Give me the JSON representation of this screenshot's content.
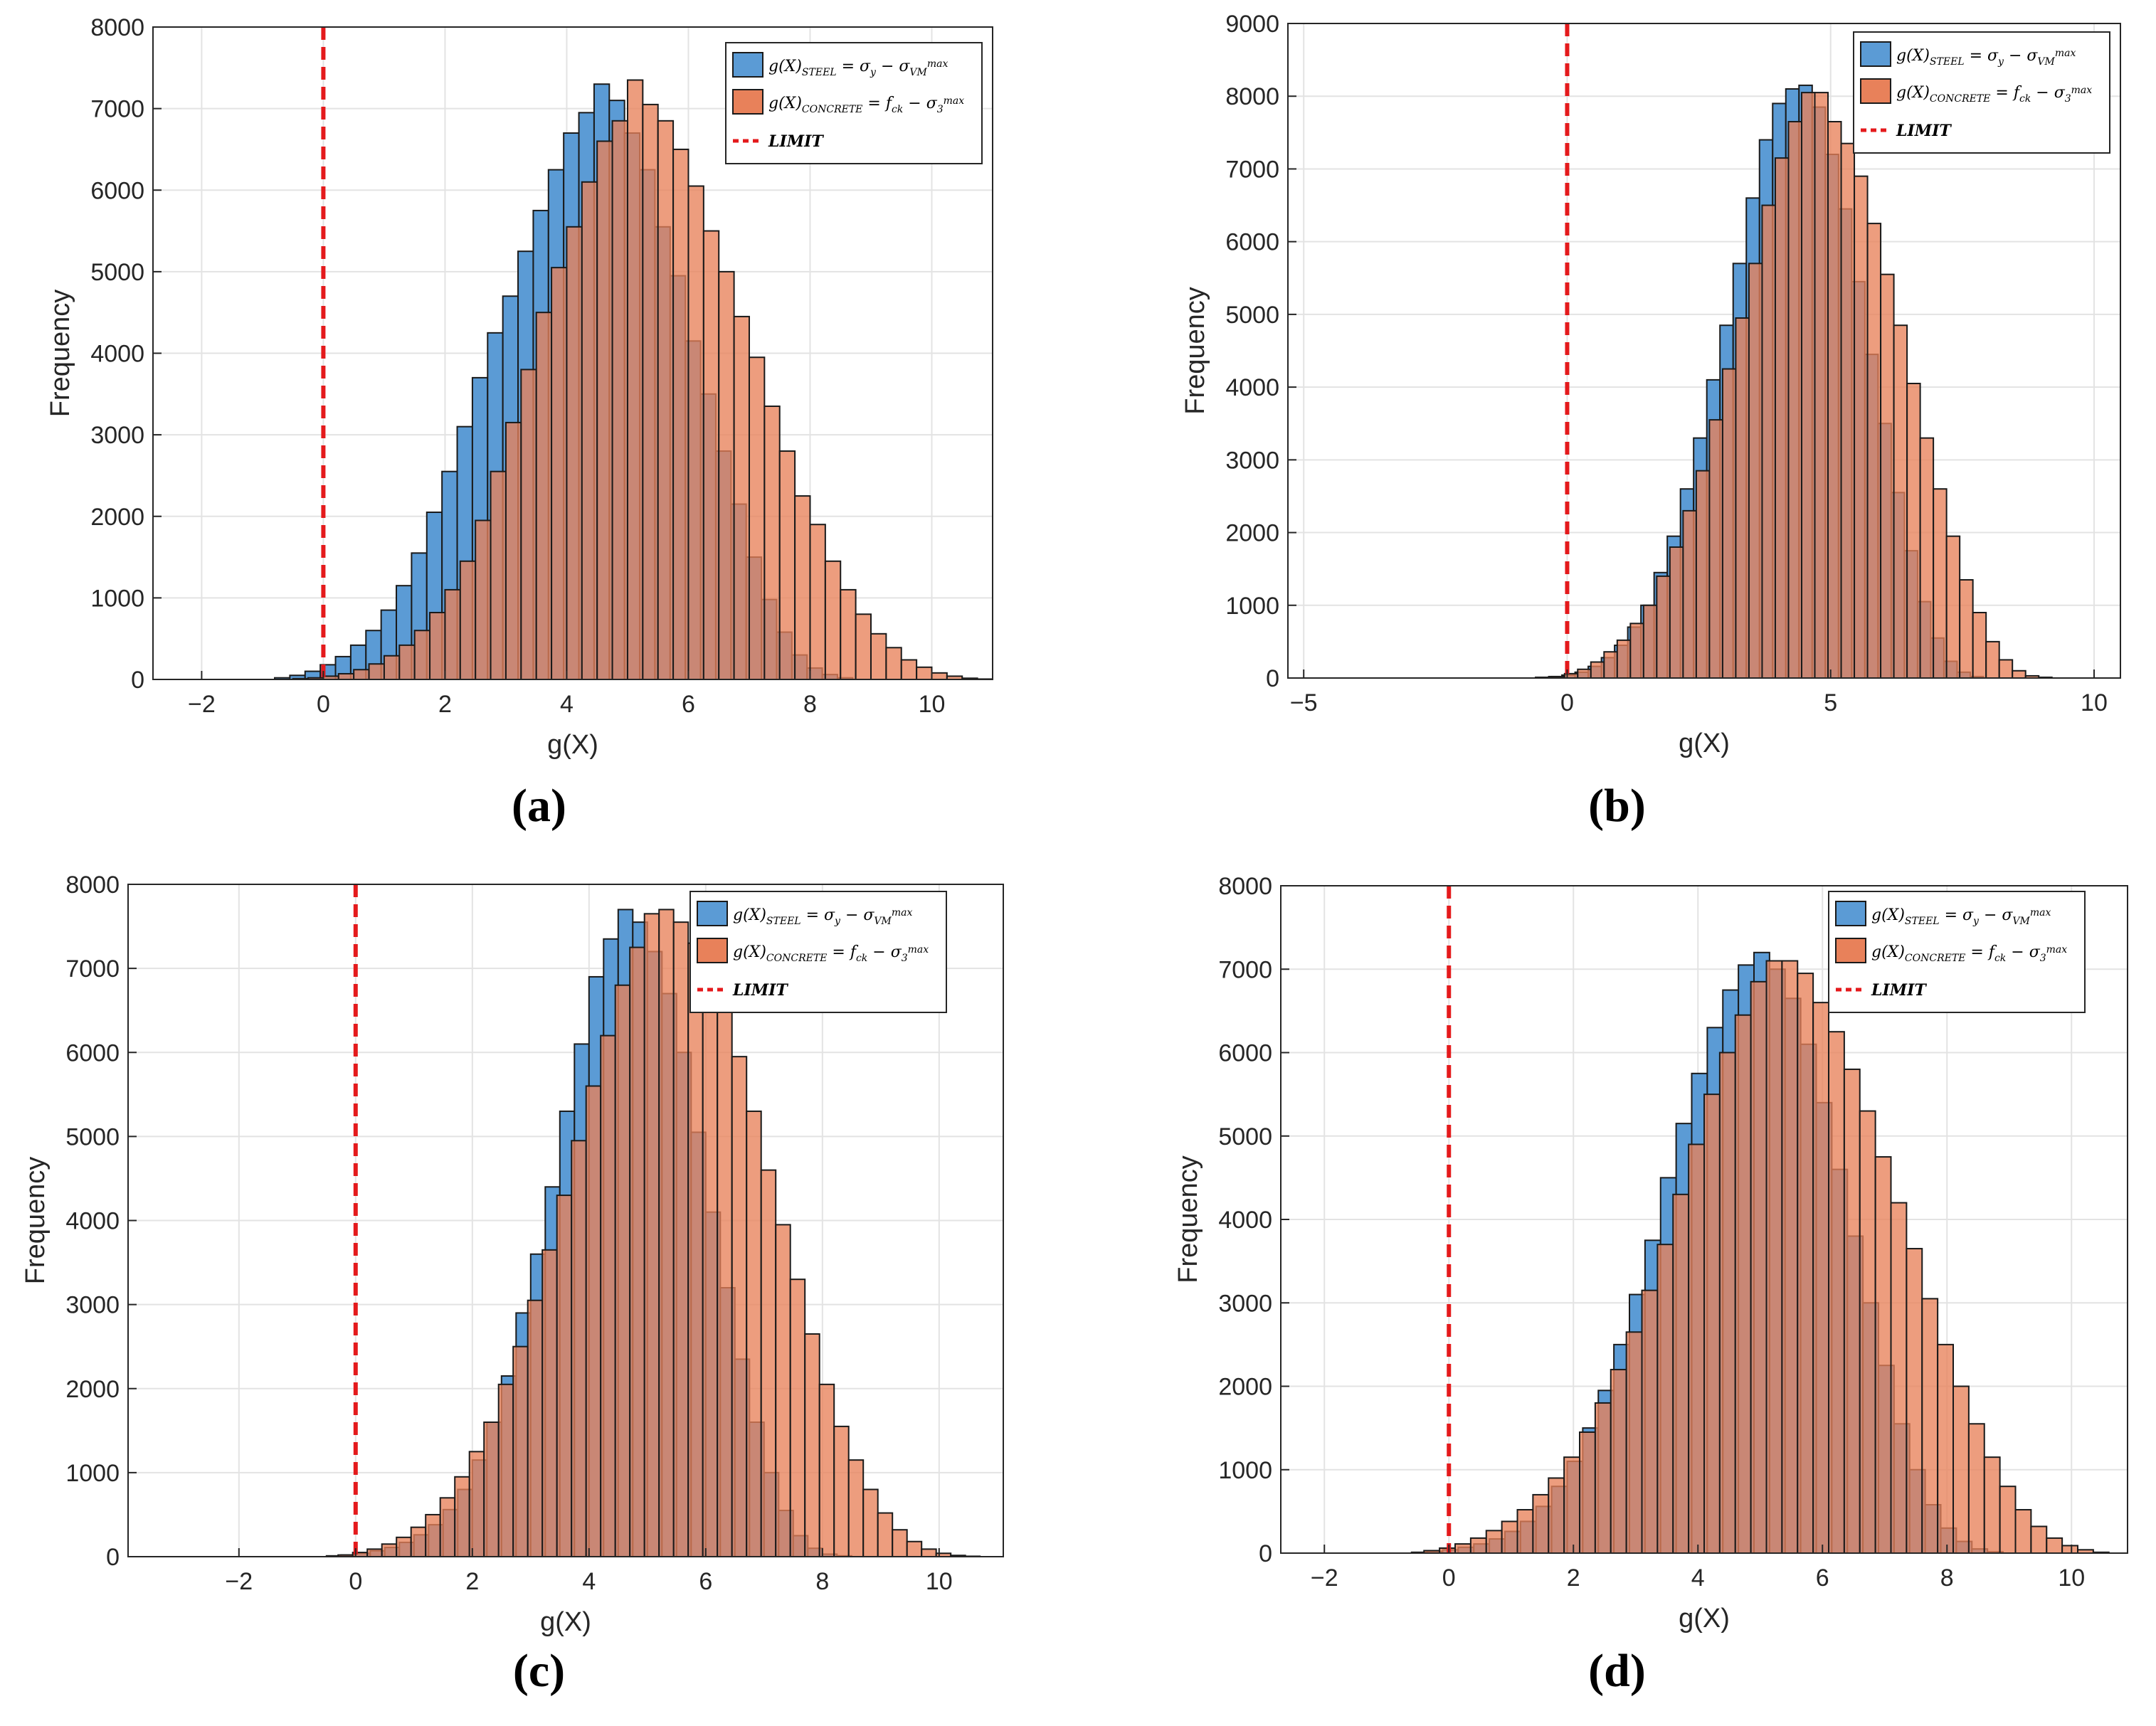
{
  "figure": {
    "legend_entries": {
      "steel": "g(X)STEEL = σy − σVM max",
      "concrete": "g(X)CONCRETE = fck − σ3 max",
      "limit": "LIMIT"
    }
  },
  "colors": {
    "steel": "#5B9BD5",
    "concrete": "#E8815A",
    "overlap": "#9B5E4A",
    "limit": "#E41A1C",
    "edge": "#1A1A1A",
    "grid": "#E3E3E3"
  },
  "chart_data": [
    {
      "panel": "(a)",
      "type": "bar",
      "xlabel": "g(X)",
      "ylabel": "Frequency",
      "xlim": [
        -2.8,
        11
      ],
      "ylim": [
        0,
        8000
      ],
      "xticks": [
        -2,
        0,
        2,
        4,
        6,
        8,
        10
      ],
      "yticks": [
        0,
        1000,
        2000,
        3000,
        4000,
        5000,
        6000,
        7000,
        8000
      ],
      "limit_x": 0,
      "series": [
        {
          "name": "g(X)STEEL",
          "start": -0.8,
          "width": 0.25,
          "values": [
            20,
            50,
            100,
            180,
            280,
            420,
            600,
            850,
            1150,
            1550,
            2050,
            2550,
            3100,
            3700,
            4250,
            4700,
            5250,
            5750,
            6250,
            6700,
            6950,
            7300,
            7100,
            6700,
            6250,
            5550,
            4950,
            4150,
            3500,
            2800,
            2150,
            1500,
            980,
            580,
            300,
            140,
            60,
            20
          ]
        },
        {
          "name": "g(X)CONCRETE",
          "start": -0.5,
          "width": 0.25,
          "values": [
            10,
            20,
            40,
            70,
            120,
            190,
            290,
            420,
            600,
            820,
            1100,
            1450,
            1950,
            2550,
            3150,
            3800,
            4500,
            5050,
            5550,
            6100,
            6600,
            6850,
            7350,
            7050,
            6850,
            6500,
            6050,
            5500,
            5000,
            4450,
            3950,
            3350,
            2800,
            2250,
            1900,
            1450,
            1100,
            800,
            560,
            390,
            240,
            150,
            80,
            40,
            15,
            5
          ]
        }
      ]
    },
    {
      "panel": "(b)",
      "type": "bar",
      "xlabel": "g(X)",
      "ylabel": "Frequency",
      "xlim": [
        -5.3,
        10.5
      ],
      "ylim": [
        0,
        9000
      ],
      "xticks": [
        -5,
        0,
        5,
        10
      ],
      "yticks": [
        0,
        1000,
        2000,
        3000,
        4000,
        5000,
        6000,
        7000,
        8000,
        9000
      ],
      "limit_x": 0,
      "series": [
        {
          "name": "g(X)STEEL",
          "start": -0.6,
          "width": 0.25,
          "values": [
            10,
            20,
            40,
            80,
            160,
            280,
            450,
            700,
            1000,
            1450,
            1950,
            2600,
            3300,
            4100,
            4850,
            5700,
            6600,
            7400,
            7900,
            8100,
            8150,
            7850,
            7200,
            6450,
            5450,
            4450,
            3500,
            2550,
            1750,
            1050,
            550,
            230,
            80,
            20
          ]
        },
        {
          "name": "g(X)CONCRETE",
          "start": -0.3,
          "width": 0.25,
          "values": [
            20,
            60,
            120,
            220,
            360,
            520,
            750,
            1000,
            1400,
            1800,
            2300,
            2850,
            3550,
            4250,
            4950,
            5700,
            6500,
            7150,
            7650,
            8050,
            8050,
            7650,
            7350,
            6900,
            6250,
            5550,
            4850,
            4050,
            3300,
            2600,
            1950,
            1350,
            900,
            500,
            250,
            100,
            30,
            10
          ]
        }
      ]
    },
    {
      "panel": "(c)",
      "type": "bar",
      "xlabel": "g(X)",
      "ylabel": "Frequency",
      "xlim": [
        -3.9,
        11.1
      ],
      "ylim": [
        0,
        8000
      ],
      "xticks": [
        -2,
        0,
        2,
        4,
        6,
        8,
        10
      ],
      "yticks": [
        0,
        1000,
        2000,
        3000,
        4000,
        5000,
        6000,
        7000,
        8000
      ],
      "limit_x": 0,
      "series": [
        {
          "name": "g(X)STEEL",
          "start": -0.5,
          "width": 0.25,
          "values": [
            10,
            20,
            40,
            70,
            110,
            170,
            260,
            380,
            560,
            800,
            1150,
            1600,
            2150,
            2900,
            3600,
            4400,
            5300,
            6100,
            6900,
            7350,
            7700,
            7550,
            7200,
            6700,
            6000,
            5050,
            4100,
            3200,
            2350,
            1600,
            1000,
            550,
            250,
            100,
            30,
            10
          ]
        },
        {
          "name": "g(X)CONCRETE",
          "start": -0.3,
          "width": 0.25,
          "values": [
            20,
            50,
            90,
            150,
            230,
            350,
            500,
            700,
            950,
            1250,
            1600,
            2050,
            2500,
            3050,
            3650,
            4300,
            4950,
            5600,
            6200,
            6800,
            7250,
            7650,
            7700,
            7550,
            7300,
            6950,
            6500,
            5950,
            5300,
            4600,
            3950,
            3300,
            2650,
            2050,
            1550,
            1150,
            800,
            520,
            320,
            180,
            90,
            40,
            15,
            5
          ]
        }
      ]
    },
    {
      "panel": "(d)",
      "type": "bar",
      "xlabel": "g(X)",
      "ylabel": "Frequency",
      "xlim": [
        -2.7,
        10.9
      ],
      "ylim": [
        0,
        8000
      ],
      "xticks": [
        -2,
        0,
        2,
        4,
        6,
        8,
        10
      ],
      "yticks": [
        0,
        1000,
        2000,
        3000,
        4000,
        5000,
        6000,
        7000,
        8000
      ],
      "limit_x": 0,
      "series": [
        {
          "name": "g(X)STEEL",
          "start": -0.6,
          "width": 0.25,
          "values": [
            10,
            20,
            40,
            70,
            110,
            170,
            260,
            380,
            560,
            800,
            1100,
            1500,
            1950,
            2500,
            3100,
            3750,
            4500,
            5150,
            5750,
            6300,
            6750,
            7050,
            7200,
            7000,
            6650,
            6100,
            5400,
            4600,
            3800,
            3000,
            2250,
            1550,
            1000,
            580,
            300,
            140,
            50,
            15
          ]
        },
        {
          "name": "g(X)CONCRETE",
          "start": -0.4,
          "width": 0.25,
          "values": [
            30,
            60,
            110,
            180,
            270,
            380,
            520,
            700,
            900,
            1150,
            1450,
            1800,
            2200,
            2650,
            3150,
            3700,
            4300,
            4900,
            5500,
            6000,
            6450,
            6850,
            7100,
            7100,
            6950,
            6600,
            6250,
            5800,
            5300,
            4750,
            4200,
            3650,
            3050,
            2500,
            2000,
            1550,
            1150,
            800,
            520,
            320,
            180,
            90,
            40,
            10
          ]
        }
      ]
    }
  ]
}
